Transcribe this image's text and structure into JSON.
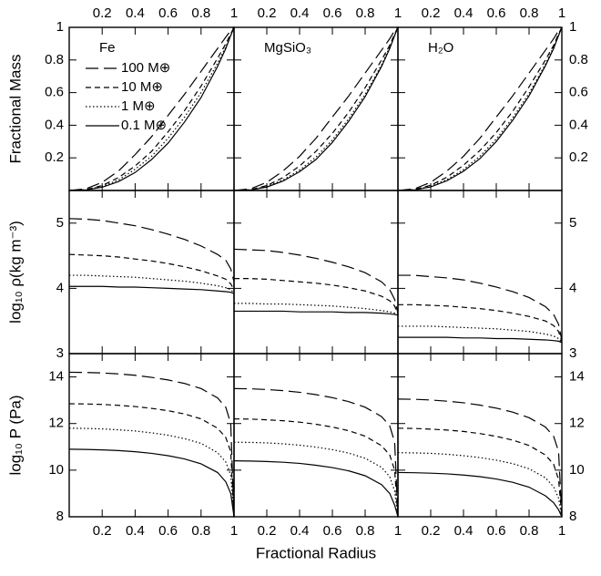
{
  "chart_data": [
    {
      "type": "line",
      "label": "Fe",
      "ylabel": "Fractional Mass",
      "legend": "upper left",
      "color": "#000000",
      "x": [
        0,
        0.1,
        0.2,
        0.3,
        0.4,
        0.5,
        0.6,
        0.7,
        0.8,
        0.9,
        0.95,
        0.98,
        1
      ],
      "xlim": [
        0,
        1
      ],
      "xticks": [
        0.2,
        0.4,
        0.6,
        0.8,
        1
      ],
      "ylim": [
        0,
        1
      ],
      "yticks": [
        0.2,
        0.4,
        0.6,
        0.8,
        1
      ],
      "series": [
        {
          "name": "100 M⊕",
          "dash": "14,6",
          "values": [
            0,
            0.01,
            0.05,
            0.12,
            0.22,
            0.33,
            0.46,
            0.59,
            0.73,
            0.87,
            0.94,
            0.98,
            1
          ]
        },
        {
          "name": "10 M⊕",
          "dash": "6,4",
          "values": [
            0,
            0.005,
            0.03,
            0.08,
            0.15,
            0.24,
            0.36,
            0.49,
            0.64,
            0.81,
            0.9,
            0.96,
            1
          ]
        },
        {
          "name": "1 M⊕",
          "dash": "1.5,2.5",
          "values": [
            0,
            0.004,
            0.025,
            0.065,
            0.13,
            0.21,
            0.32,
            0.45,
            0.6,
            0.78,
            0.88,
            0.95,
            1
          ]
        },
        {
          "name": "0.1 M⊕",
          "dash": "none",
          "values": [
            0,
            0.003,
            0.02,
            0.055,
            0.11,
            0.19,
            0.29,
            0.42,
            0.57,
            0.76,
            0.87,
            0.95,
            1
          ]
        }
      ]
    },
    {
      "type": "line",
      "label": "MgSiO₃",
      "color": "#000000",
      "x": [
        0,
        0.1,
        0.2,
        0.3,
        0.4,
        0.5,
        0.6,
        0.7,
        0.8,
        0.9,
        0.95,
        0.98,
        1
      ],
      "xlim": [
        0,
        1
      ],
      "xticks": [
        0.2,
        0.4,
        0.6,
        0.8,
        1
      ],
      "ylim": [
        0,
        1
      ],
      "yticks": [
        0.2,
        0.4,
        0.6,
        0.8,
        1
      ],
      "series": [
        {
          "dash": "14,6",
          "values": [
            0,
            0.01,
            0.05,
            0.12,
            0.21,
            0.32,
            0.45,
            0.58,
            0.72,
            0.86,
            0.93,
            0.98,
            1
          ]
        },
        {
          "dash": "6,4",
          "values": [
            0,
            0.005,
            0.03,
            0.08,
            0.15,
            0.24,
            0.35,
            0.48,
            0.63,
            0.8,
            0.89,
            0.96,
            1
          ]
        },
        {
          "dash": "1.5,2.5",
          "values": [
            0,
            0.004,
            0.025,
            0.065,
            0.125,
            0.205,
            0.31,
            0.44,
            0.59,
            0.77,
            0.88,
            0.95,
            1
          ]
        },
        {
          "dash": "none",
          "values": [
            0,
            0.003,
            0.021,
            0.058,
            0.115,
            0.19,
            0.295,
            0.425,
            0.575,
            0.76,
            0.87,
            0.95,
            1
          ]
        }
      ]
    },
    {
      "type": "line",
      "label": "H₂O",
      "color": "#000000",
      "x": [
        0,
        0.1,
        0.2,
        0.3,
        0.4,
        0.5,
        0.6,
        0.7,
        0.8,
        0.9,
        0.95,
        0.98,
        1
      ],
      "xlim": [
        0,
        1
      ],
      "xticks": [
        0.2,
        0.4,
        0.6,
        0.8,
        1
      ],
      "ylim": [
        0,
        1
      ],
      "yticks": [
        0.2,
        0.4,
        0.6,
        0.8,
        1
      ],
      "series": [
        {
          "dash": "14,6",
          "values": [
            0,
            0.01,
            0.05,
            0.12,
            0.21,
            0.32,
            0.45,
            0.58,
            0.72,
            0.86,
            0.93,
            0.98,
            1
          ]
        },
        {
          "dash": "6,4",
          "values": [
            0,
            0.006,
            0.032,
            0.082,
            0.155,
            0.245,
            0.355,
            0.485,
            0.635,
            0.8,
            0.89,
            0.96,
            1
          ]
        },
        {
          "dash": "1.5,2.5",
          "values": [
            0,
            0.004,
            0.026,
            0.067,
            0.128,
            0.21,
            0.315,
            0.445,
            0.595,
            0.775,
            0.88,
            0.95,
            1
          ]
        },
        {
          "dash": "none",
          "values": [
            0,
            0.003,
            0.022,
            0.06,
            0.118,
            0.195,
            0.3,
            0.43,
            0.58,
            0.765,
            0.87,
            0.95,
            1
          ]
        }
      ]
    },
    {
      "type": "line",
      "ylabel": "log₁₀ ρ(kg m⁻³)",
      "color": "#000000",
      "x": [
        0,
        0.1,
        0.2,
        0.3,
        0.4,
        0.5,
        0.6,
        0.7,
        0.8,
        0.9,
        0.95,
        0.98,
        1
      ],
      "xlim": [
        0,
        1
      ],
      "xticks": [
        0.2,
        0.4,
        0.6,
        0.8,
        1
      ],
      "ylim": [
        3,
        5.5
      ],
      "yticks": [
        3,
        4,
        5
      ],
      "series": [
        {
          "dash": "14,6",
          "values": [
            5.07,
            5.06,
            5.04,
            5.0,
            4.96,
            4.9,
            4.83,
            4.75,
            4.65,
            4.52,
            4.43,
            4.3,
            4.1
          ]
        },
        {
          "dash": "6,4",
          "values": [
            4.52,
            4.51,
            4.5,
            4.48,
            4.45,
            4.42,
            4.38,
            4.33,
            4.27,
            4.19,
            4.14,
            4.07,
            3.98
          ]
        },
        {
          "dash": "1.5,2.5",
          "values": [
            4.2,
            4.2,
            4.19,
            4.18,
            4.17,
            4.15,
            4.13,
            4.11,
            4.08,
            4.04,
            4.01,
            3.98,
            3.93
          ]
        },
        {
          "dash": "none",
          "values": [
            4.03,
            4.03,
            4.03,
            4.02,
            4.02,
            4.01,
            4.0,
            3.99,
            3.98,
            3.96,
            3.95,
            3.94,
            3.92
          ]
        }
      ]
    },
    {
      "type": "line",
      "color": "#000000",
      "x": [
        0,
        0.1,
        0.2,
        0.3,
        0.4,
        0.5,
        0.6,
        0.7,
        0.8,
        0.9,
        0.95,
        0.98,
        1
      ],
      "xlim": [
        0,
        1
      ],
      "xticks": [
        0.2,
        0.4,
        0.6,
        0.8,
        1
      ],
      "ylim": [
        3,
        5.5
      ],
      "yticks": [
        3,
        4,
        5
      ],
      "series": [
        {
          "dash": "14,6",
          "values": [
            4.6,
            4.59,
            4.58,
            4.55,
            4.51,
            4.46,
            4.4,
            4.33,
            4.24,
            4.1,
            3.98,
            3.83,
            3.62
          ]
        },
        {
          "dash": "6,4",
          "values": [
            4.15,
            4.15,
            4.14,
            4.12,
            4.1,
            4.08,
            4.05,
            4.01,
            3.96,
            3.88,
            3.81,
            3.73,
            3.6
          ]
        },
        {
          "dash": "1.5,2.5",
          "values": [
            3.77,
            3.77,
            3.76,
            3.76,
            3.75,
            3.74,
            3.73,
            3.71,
            3.69,
            3.66,
            3.64,
            3.62,
            3.59
          ]
        },
        {
          "dash": "none",
          "values": [
            3.65,
            3.65,
            3.65,
            3.65,
            3.64,
            3.64,
            3.64,
            3.63,
            3.63,
            3.62,
            3.61,
            3.6,
            3.59
          ]
        }
      ]
    },
    {
      "type": "line",
      "color": "#000000",
      "x": [
        0,
        0.1,
        0.2,
        0.3,
        0.4,
        0.5,
        0.6,
        0.7,
        0.8,
        0.9,
        0.95,
        0.98,
        1
      ],
      "xlim": [
        0,
        1
      ],
      "xticks": [
        0.2,
        0.4,
        0.6,
        0.8,
        1
      ],
      "ylim": [
        3,
        5.5
      ],
      "yticks": [
        3,
        4,
        5
      ],
      "series": [
        {
          "dash": "14,6",
          "values": [
            4.2,
            4.2,
            4.18,
            4.16,
            4.13,
            4.08,
            4.02,
            3.95,
            3.86,
            3.72,
            3.6,
            3.45,
            3.2
          ]
        },
        {
          "dash": "6,4",
          "values": [
            3.75,
            3.75,
            3.74,
            3.73,
            3.71,
            3.69,
            3.66,
            3.62,
            3.57,
            3.5,
            3.43,
            3.34,
            3.18
          ]
        },
        {
          "dash": "1.5,2.5",
          "values": [
            3.42,
            3.42,
            3.42,
            3.41,
            3.4,
            3.39,
            3.38,
            3.36,
            3.34,
            3.3,
            3.27,
            3.23,
            3.17
          ]
        },
        {
          "dash": "none",
          "values": [
            3.25,
            3.25,
            3.25,
            3.25,
            3.24,
            3.24,
            3.23,
            3.23,
            3.22,
            3.21,
            3.2,
            3.19,
            3.17
          ]
        }
      ]
    },
    {
      "type": "line",
      "ylabel": "log₁₀ P (Pa)",
      "color": "#000000",
      "x": [
        0,
        0.1,
        0.2,
        0.3,
        0.4,
        0.5,
        0.6,
        0.7,
        0.8,
        0.9,
        0.95,
        0.98,
        1
      ],
      "xlim": [
        0,
        1
      ],
      "xticks": [
        0.2,
        0.4,
        0.6,
        0.8,
        1
      ],
      "ylim": [
        8,
        15
      ],
      "yticks": [
        8,
        10,
        12,
        14
      ],
      "series": [
        {
          "dash": "14,6",
          "values": [
            14.2,
            14.19,
            14.17,
            14.13,
            14.07,
            13.98,
            13.87,
            13.72,
            13.5,
            13.1,
            12.7,
            12.0,
            8
          ]
        },
        {
          "dash": "6,4",
          "values": [
            12.85,
            12.84,
            12.82,
            12.78,
            12.73,
            12.65,
            12.55,
            12.41,
            12.2,
            11.8,
            11.4,
            10.8,
            8
          ]
        },
        {
          "dash": "1.5,2.5",
          "values": [
            11.8,
            11.79,
            11.77,
            11.73,
            11.68,
            11.6,
            11.5,
            11.35,
            11.15,
            10.75,
            10.35,
            9.8,
            8
          ]
        },
        {
          "dash": "none",
          "values": [
            10.9,
            10.89,
            10.87,
            10.84,
            10.79,
            10.72,
            10.62,
            10.48,
            10.27,
            9.9,
            9.5,
            9.0,
            8
          ]
        }
      ]
    },
    {
      "type": "line",
      "xlabel": "Fractional Radius",
      "color": "#000000",
      "x": [
        0,
        0.1,
        0.2,
        0.3,
        0.4,
        0.5,
        0.6,
        0.7,
        0.8,
        0.9,
        0.95,
        0.98,
        1
      ],
      "xlim": [
        0,
        1
      ],
      "xticks": [
        0.2,
        0.4,
        0.6,
        0.8,
        1
      ],
      "ylim": [
        8,
        15
      ],
      "yticks": [
        8,
        10,
        12,
        14
      ],
      "series": [
        {
          "dash": "14,6",
          "values": [
            13.5,
            13.49,
            13.46,
            13.41,
            13.34,
            13.24,
            13.11,
            12.94,
            12.7,
            12.3,
            11.9,
            11.2,
            8
          ]
        },
        {
          "dash": "6,4",
          "values": [
            12.2,
            12.19,
            12.16,
            12.12,
            12.06,
            11.97,
            11.85,
            11.69,
            11.46,
            11.05,
            10.65,
            10.0,
            8
          ]
        },
        {
          "dash": "1.5,2.5",
          "values": [
            11.2,
            11.19,
            11.17,
            11.13,
            11.07,
            10.99,
            10.88,
            10.73,
            10.51,
            10.12,
            9.72,
            9.1,
            8
          ]
        },
        {
          "dash": "none",
          "values": [
            10.4,
            10.39,
            10.37,
            10.34,
            10.29,
            10.21,
            10.11,
            9.97,
            9.76,
            9.38,
            9.0,
            8.5,
            8
          ]
        }
      ]
    },
    {
      "type": "line",
      "color": "#000000",
      "x": [
        0,
        0.1,
        0.2,
        0.3,
        0.4,
        0.5,
        0.6,
        0.7,
        0.8,
        0.9,
        0.95,
        0.98,
        1
      ],
      "xlim": [
        0,
        1
      ],
      "xticks": [
        0.2,
        0.4,
        0.6,
        0.8,
        1
      ],
      "ylim": [
        8,
        15
      ],
      "yticks": [
        8,
        10,
        12,
        14
      ],
      "series": [
        {
          "dash": "14,6",
          "values": [
            13.05,
            13.04,
            13.01,
            12.96,
            12.89,
            12.79,
            12.66,
            12.49,
            12.25,
            11.85,
            11.45,
            10.8,
            8
          ]
        },
        {
          "dash": "6,4",
          "values": [
            11.8,
            11.79,
            11.76,
            11.72,
            11.66,
            11.57,
            11.45,
            11.29,
            11.06,
            10.65,
            10.25,
            9.6,
            8
          ]
        },
        {
          "dash": "1.5,2.5",
          "values": [
            10.75,
            10.74,
            10.72,
            10.68,
            10.62,
            10.54,
            10.43,
            10.28,
            10.06,
            9.67,
            9.28,
            8.8,
            8
          ]
        },
        {
          "dash": "none",
          "values": [
            9.9,
            9.89,
            9.87,
            9.84,
            9.79,
            9.72,
            9.62,
            9.48,
            9.27,
            8.9,
            8.6,
            8.3,
            8
          ]
        }
      ]
    }
  ]
}
